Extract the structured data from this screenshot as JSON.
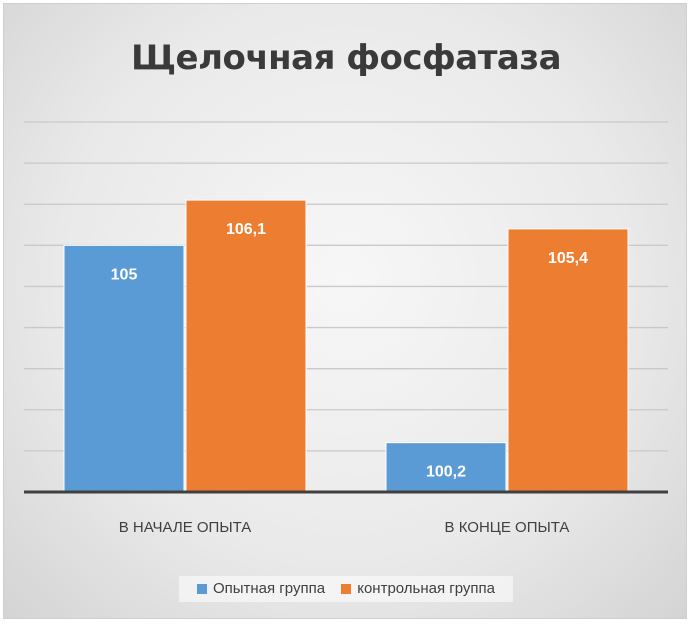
{
  "chart_data": {
    "type": "bar",
    "title": "Щелочная фосфатаза",
    "categories": [
      "В НАЧАЛЕ ОПЫТА",
      "В КОНЦЕ ОПЫТА"
    ],
    "series": [
      {
        "name": "Опытная группа",
        "values": [
          105,
          100.2
        ],
        "labels": [
          "105",
          "100,2"
        ],
        "color": "#5b9bd5"
      },
      {
        "name": "контрольная группа",
        "values": [
          106.1,
          105.4
        ],
        "labels": [
          "106,1",
          "105,4"
        ],
        "color": "#ed7d31"
      }
    ],
    "ylim": [
      99,
      108
    ],
    "grid": true,
    "y_axis_labels_shown": false,
    "legend_position": "bottom"
  }
}
